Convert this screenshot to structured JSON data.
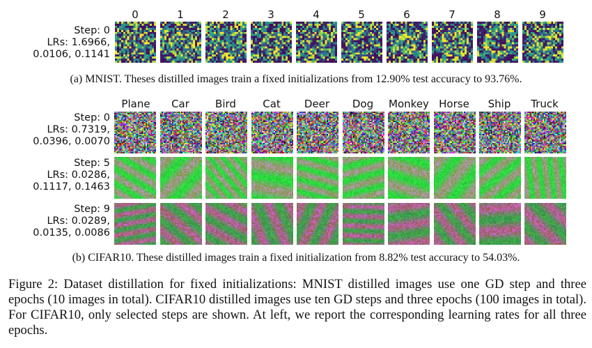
{
  "mnist": {
    "labels": [
      "0",
      "1",
      "2",
      "3",
      "4",
      "5",
      "6",
      "7",
      "8",
      "9"
    ],
    "step": "Step: 0",
    "lrs_line1": "LRs: 1.6966,",
    "lrs_line2": "0.0106, 0.1141",
    "caption": "(a) MNIST. Theses distilled images train a fixed initializations from 12.90% test accuracy to 93.76%."
  },
  "cifar": {
    "labels": [
      "Plane",
      "Car",
      "Bird",
      "Cat",
      "Deer",
      "Dog",
      "Monkey",
      "Horse",
      "Ship",
      "Truck"
    ],
    "rows": [
      {
        "step": "Step: 0",
        "lrs_line1": "LRs: 0.7319,",
        "lrs_line2": "0.0396, 0.0070"
      },
      {
        "step": "Step: 5",
        "lrs_line1": "LRs: 0.0286,",
        "lrs_line2": "0.1117, 0.1463"
      },
      {
        "step": "Step: 9",
        "lrs_line1": "LRs: 0.0289,",
        "lrs_line2": "0.0135, 0.0086"
      }
    ],
    "caption": "(b) CIFAR10. These distilled images train a fixed initialization from 8.82% test accuracy to 54.03%."
  },
  "figure_caption": "Figure 2: Dataset distillation for fixed initializations: MNIST distilled images use one GD step and three epochs (10 images in total). CIFAR10 distilled images use ten GD steps and three epochs (100 images in total). For CIFAR10, only selected steps are shown. At left, we report the corresponding learning rates for all three epochs.",
  "colors": {
    "viridis_dark": "#440154",
    "viridis_mid": "#21918c",
    "viridis_light": "#fde725"
  }
}
